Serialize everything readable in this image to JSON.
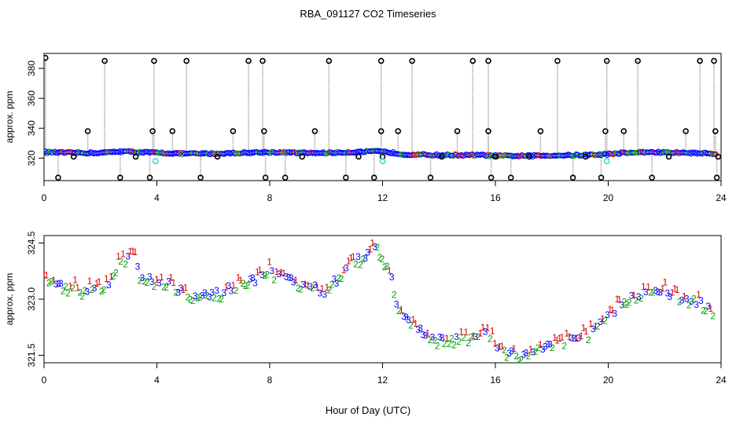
{
  "title": "RBA_091127  CO2 Timeseries",
  "xlabel": "Hour of Day (UTC)",
  "colors": {
    "black": "#000000",
    "blue": "#0000ff",
    "green": "#00a000",
    "red": "#e00000",
    "cyan": "#33dddd",
    "gray": "#999999"
  },
  "chart_data": [
    {
      "type": "scatter",
      "panel": "top",
      "ylabel": "approx. ppm",
      "xlim": [
        0,
        24
      ],
      "ylim": [
        305,
        390
      ],
      "xticks": [
        0,
        4,
        8,
        12,
        16,
        20,
        24
      ],
      "yticks": [
        320,
        340,
        360,
        380
      ],
      "baseline": [
        [
          0,
          324
        ],
        [
          1,
          323.5
        ],
        [
          2,
          323.5
        ],
        [
          2.7,
          324.5
        ],
        [
          3.2,
          324.2
        ],
        [
          4,
          323.5
        ],
        [
          5,
          323
        ],
        [
          6,
          323
        ],
        [
          7,
          323.5
        ],
        [
          8,
          324
        ],
        [
          9,
          323.5
        ],
        [
          10,
          323.5
        ],
        [
          11,
          324
        ],
        [
          11.8,
          324.5
        ],
        [
          12.2,
          324
        ],
        [
          12.8,
          322.5
        ],
        [
          14,
          322
        ],
        [
          15.5,
          322
        ],
        [
          16,
          321.5
        ],
        [
          17,
          321.5
        ],
        [
          18,
          321.8
        ],
        [
          19,
          322
        ],
        [
          19.9,
          322.5
        ],
        [
          20.5,
          323.5
        ],
        [
          21.5,
          324
        ],
        [
          22,
          323.8
        ],
        [
          23,
          323.5
        ],
        [
          23.8,
          323
        ]
      ],
      "high_points": [
        [
          0.05,
          387
        ],
        [
          2.15,
          385
        ],
        [
          3.9,
          385
        ],
        [
          5.05,
          385
        ],
        [
          7.25,
          385
        ],
        [
          7.75,
          385
        ],
        [
          10.1,
          385
        ],
        [
          11.95,
          385
        ],
        [
          13.05,
          385
        ],
        [
          15.2,
          385
        ],
        [
          15.75,
          385
        ],
        [
          18.2,
          385
        ],
        [
          19.95,
          385
        ],
        [
          21.05,
          385
        ],
        [
          23.25,
          385
        ],
        [
          23.75,
          385
        ]
      ],
      "mid_points": [
        [
          1.55,
          338
        ],
        [
          3.85,
          338
        ],
        [
          4.55,
          338
        ],
        [
          6.7,
          338
        ],
        [
          7.8,
          338
        ],
        [
          9.6,
          338
        ],
        [
          11.95,
          338
        ],
        [
          12.55,
          338
        ],
        [
          14.65,
          338
        ],
        [
          15.75,
          338
        ],
        [
          17.6,
          338
        ],
        [
          19.9,
          338
        ],
        [
          20.55,
          338
        ],
        [
          22.75,
          338
        ],
        [
          23.8,
          338
        ]
      ],
      "low_points": [
        [
          0.5,
          307
        ],
        [
          2.7,
          307
        ],
        [
          3.75,
          307
        ],
        [
          5.55,
          307
        ],
        [
          7.85,
          307
        ],
        [
          8.55,
          307
        ],
        [
          10.7,
          307
        ],
        [
          11.7,
          307
        ],
        [
          13.7,
          307
        ],
        [
          15.85,
          307
        ],
        [
          16.55,
          307
        ],
        [
          18.75,
          307
        ],
        [
          19.75,
          307
        ],
        [
          21.55,
          307
        ],
        [
          23.85,
          307
        ],
        [
          1.05,
          321
        ],
        [
          3.25,
          321
        ],
        [
          6.15,
          321
        ],
        [
          9.15,
          321
        ],
        [
          11.15,
          321
        ],
        [
          12.0,
          321
        ],
        [
          14.1,
          321
        ],
        [
          16.0,
          321
        ],
        [
          17.2,
          321
        ],
        [
          19.2,
          321
        ],
        [
          22.15,
          321
        ],
        [
          23.9,
          321
        ]
      ],
      "cyan_points": [
        [
          3.95,
          318
        ],
        [
          12.0,
          318
        ],
        [
          19.95,
          318
        ]
      ]
    },
    {
      "type": "scatter",
      "panel": "bottom",
      "ylabel": "approx. ppm",
      "xlim": [
        0,
        24
      ],
      "ylim": [
        321.3,
        324.7
      ],
      "xticks": [
        0,
        4,
        8,
        12,
        16,
        20,
        24
      ],
      "yticks": [
        321.5,
        323.0,
        324.5
      ],
      "ytick_labels": [
        "321.5",
        "323.0",
        "324.5"
      ],
      "series_markers": [
        "1",
        "2",
        "3"
      ],
      "profile": [
        [
          0,
          323.6
        ],
        [
          0.5,
          323.4
        ],
        [
          1,
          323.3
        ],
        [
          1.5,
          323.25
        ],
        [
          2,
          323.3
        ],
        [
          2.4,
          323.5
        ],
        [
          2.6,
          323.9
        ],
        [
          2.9,
          324.1
        ],
        [
          3.2,
          324.2
        ],
        [
          3.4,
          323.6
        ],
        [
          3.6,
          323.6
        ],
        [
          4,
          323.5
        ],
        [
          4.5,
          323.4
        ],
        [
          5,
          323.2
        ],
        [
          5.5,
          323.1
        ],
        [
          6,
          323.1
        ],
        [
          6.5,
          323.25
        ],
        [
          7,
          323.4
        ],
        [
          7.5,
          323.5
        ],
        [
          7.8,
          323.6
        ],
        [
          8,
          323.8
        ],
        [
          8.3,
          323.6
        ],
        [
          8.7,
          323.5
        ],
        [
          9,
          323.45
        ],
        [
          9.5,
          323.3
        ],
        [
          10,
          323.25
        ],
        [
          10.5,
          323.6
        ],
        [
          11,
          324.0
        ],
        [
          11.5,
          324.2
        ],
        [
          11.8,
          324.4
        ],
        [
          12.1,
          324.0
        ],
        [
          12.3,
          323.6
        ],
        [
          12.5,
          322.8
        ],
        [
          12.7,
          322.6
        ],
        [
          13,
          322.3
        ],
        [
          13.5,
          322.1
        ],
        [
          14,
          321.9
        ],
        [
          14.5,
          321.95
        ],
        [
          15,
          321.95
        ],
        [
          15.5,
          322.0
        ],
        [
          15.8,
          322.1
        ],
        [
          16,
          321.75
        ],
        [
          16.5,
          321.6
        ],
        [
          17,
          321.5
        ],
        [
          17.5,
          321.7
        ],
        [
          18,
          321.8
        ],
        [
          18.5,
          321.85
        ],
        [
          19,
          321.95
        ],
        [
          19.5,
          322.2
        ],
        [
          20,
          322.6
        ],
        [
          20.5,
          322.9
        ],
        [
          21,
          323.1
        ],
        [
          21.5,
          323.2
        ],
        [
          22,
          323.25
        ],
        [
          22.5,
          323.05
        ],
        [
          23,
          323.0
        ],
        [
          23.5,
          322.8
        ],
        [
          23.8,
          322.5
        ]
      ]
    }
  ]
}
